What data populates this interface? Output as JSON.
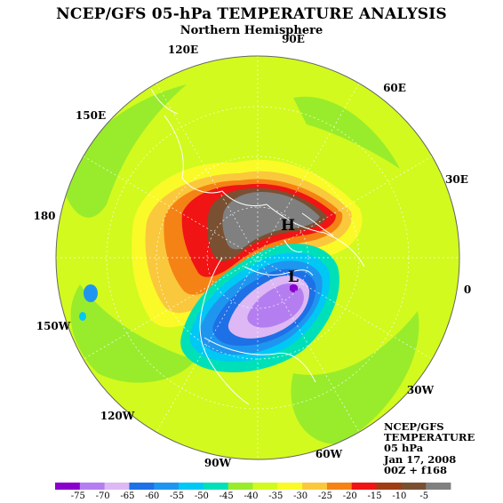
{
  "title": "NCEP/GFS 05-hPa TEMPERATURE ANALYSIS",
  "subtitle": "Northern Hemisphere",
  "longitude_labels": [
    "90E",
    "120E",
    "60E",
    "150E",
    "30E",
    "180",
    "0",
    "150W",
    "30W",
    "120W",
    "60W",
    "90W"
  ],
  "centers": [
    {
      "letter": "H",
      "color": "#000000"
    },
    {
      "letter": "L",
      "color": "#000000"
    }
  ],
  "info": {
    "model": "NCEP/GFS",
    "variable": "TEMPERATURE",
    "level": "05 hPa",
    "date": "Jan 17, 2008",
    "run": "00Z + f168"
  },
  "colorbar": {
    "labels": [
      "-75",
      "-70",
      "-65",
      "-60",
      "-55",
      "-50",
      "-45",
      "-40",
      "-35",
      "-30",
      "-25",
      "-20",
      "-15",
      "-10",
      "-5"
    ],
    "colors": [
      "#8a00cc",
      "#b57ef0",
      "#ddb8f5",
      "#1e70e6",
      "#1e96f0",
      "#00c8f5",
      "#00e0b8",
      "#98ec2c",
      "#d2fa1e",
      "#fafa28",
      "#fac83c",
      "#f58214",
      "#f01414",
      "#a03c14",
      "#7a5032",
      "#808080"
    ]
  },
  "palette": {
    "ocean_base": "#d2fa1e",
    "coastline": "#ffffff",
    "grid": "#ffffff"
  }
}
